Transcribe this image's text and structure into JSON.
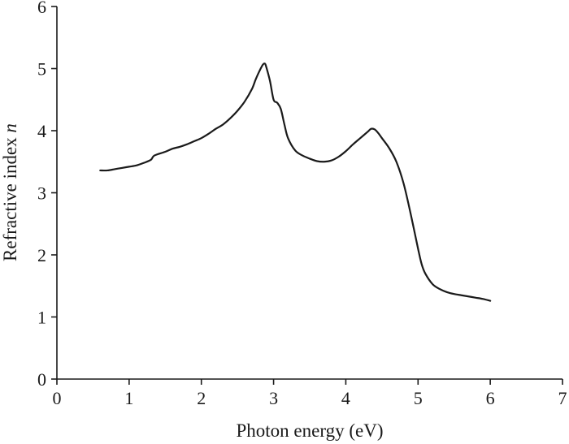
{
  "chart_data": {
    "type": "line",
    "xlabel": "Photon energy (eV)",
    "ylabel": {
      "text": "Refractive index ",
      "symbol": "n"
    },
    "xlim": [
      0,
      7
    ],
    "ylim": [
      0,
      6
    ],
    "xticks": [
      "0",
      "1",
      "2",
      "3",
      "4",
      "5",
      "6",
      "7"
    ],
    "yticks": [
      "0",
      "1",
      "2",
      "3",
      "4",
      "5",
      "6"
    ],
    "grid": false,
    "series_color": "#1a1a1a",
    "series": [
      {
        "x": [
          0.6,
          0.7,
          0.8,
          0.9,
          1.0,
          1.1,
          1.2,
          1.3,
          1.35,
          1.5,
          1.6,
          1.7,
          1.8,
          1.9,
          2.0,
          2.1,
          2.2,
          2.3,
          2.4,
          2.5,
          2.6,
          2.7,
          2.75,
          2.8,
          2.85,
          2.88,
          2.9,
          2.95,
          3.0,
          3.05,
          3.1,
          3.15,
          3.2,
          3.3,
          3.4,
          3.5,
          3.6,
          3.7,
          3.8,
          3.9,
          4.0,
          4.1,
          4.2,
          4.3,
          4.35,
          4.4,
          4.45,
          4.5,
          4.6,
          4.7,
          4.8,
          4.9,
          5.0,
          5.05,
          5.1,
          5.2,
          5.3,
          5.4,
          5.5,
          5.6,
          5.7,
          5.8,
          5.9,
          6.0
        ],
        "y": [
          3.36,
          3.36,
          3.38,
          3.4,
          3.42,
          3.44,
          3.48,
          3.53,
          3.6,
          3.66,
          3.71,
          3.74,
          3.78,
          3.83,
          3.88,
          3.95,
          4.03,
          4.1,
          4.2,
          4.32,
          4.47,
          4.67,
          4.82,
          4.95,
          5.06,
          5.08,
          5.02,
          4.8,
          4.5,
          4.45,
          4.35,
          4.1,
          3.88,
          3.68,
          3.6,
          3.55,
          3.51,
          3.5,
          3.52,
          3.58,
          3.67,
          3.78,
          3.88,
          3.98,
          4.03,
          4.02,
          3.96,
          3.88,
          3.72,
          3.5,
          3.15,
          2.65,
          2.1,
          1.85,
          1.7,
          1.53,
          1.45,
          1.4,
          1.37,
          1.35,
          1.33,
          1.31,
          1.29,
          1.26
        ]
      }
    ]
  }
}
